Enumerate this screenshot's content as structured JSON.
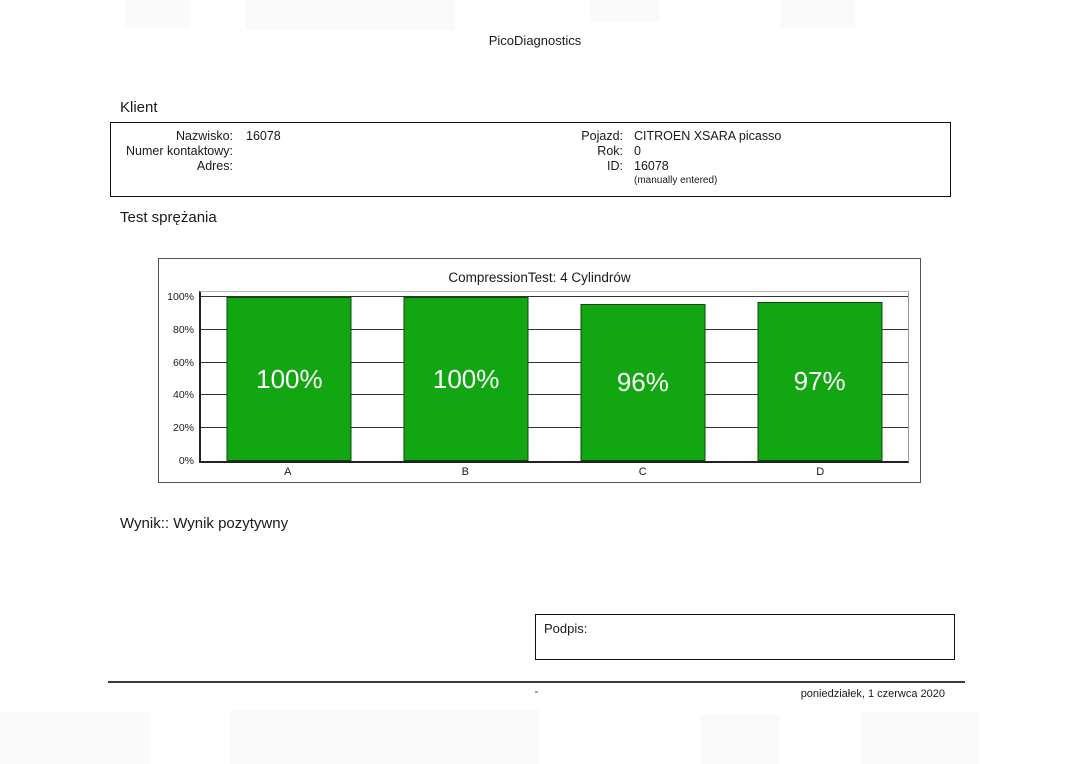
{
  "header": {
    "title": "PicoDiagnostics"
  },
  "client": {
    "section_label": "Klient",
    "left": [
      {
        "label": "Nazwisko:",
        "value": "16078"
      },
      {
        "label": "Numer kontaktowy:",
        "value": ""
      },
      {
        "label": "Adres:",
        "value": ""
      }
    ],
    "right": [
      {
        "label": "Pojazd:",
        "value": "CITROEN XSARA picasso"
      },
      {
        "label": "Rok:",
        "value": "0"
      },
      {
        "label": "ID:",
        "value": "16078"
      }
    ],
    "note": "(manually entered)"
  },
  "test_section": {
    "label": "Test sprężania"
  },
  "chart_data": {
    "type": "bar",
    "title": "CompressionTest: 4 Cylindrów",
    "categories": [
      "A",
      "B",
      "C",
      "D"
    ],
    "values": [
      100,
      100,
      96,
      97
    ],
    "bar_labels": [
      "100%",
      "100%",
      "96%",
      "97%"
    ],
    "y_ticks": [
      "100%",
      "80%",
      "60%",
      "40%",
      "20%",
      "0%"
    ],
    "ylim": [
      0,
      100
    ],
    "grid": true,
    "legend": "none",
    "bar_color": "#12a712",
    "bar_label_color": "#ffffff"
  },
  "result": {
    "text": "Wynik:: Wynik pozytywny"
  },
  "signature": {
    "label": "Podpis:"
  },
  "footer": {
    "center": "-",
    "date": "poniedziałek, 1 czerwca 2020"
  }
}
